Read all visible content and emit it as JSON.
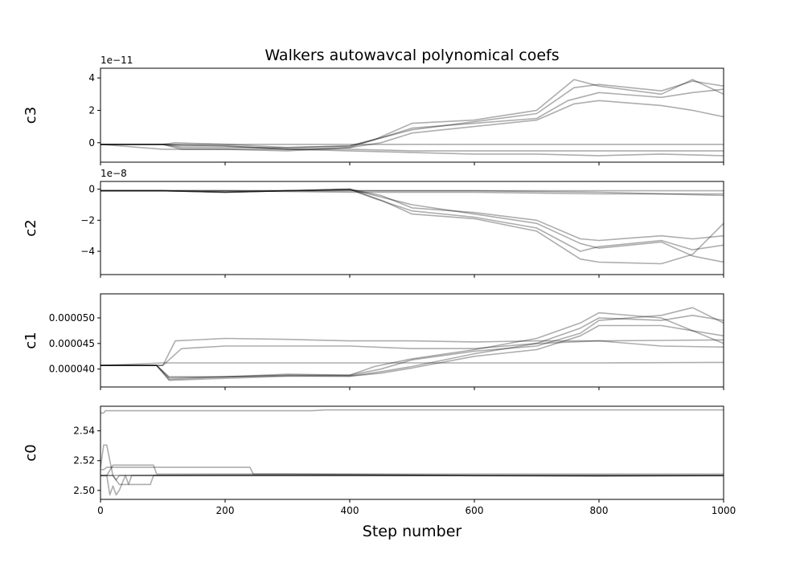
{
  "chart_data": {
    "type": "line",
    "title": "Walkers autowavcal polynomical coefs",
    "xlabel": "Step number",
    "xlim": [
      0,
      1000
    ],
    "xticks": [
      0,
      200,
      400,
      600,
      800,
      1000
    ],
    "xtick_labels": [
      "0",
      "200",
      "400",
      "600",
      "800",
      "1000"
    ],
    "series_color": "#000000",
    "grid": false,
    "panels": [
      {
        "ylabel": "c3",
        "offset_text": "1e−11",
        "ylim": [
          -1.2,
          4.6
        ],
        "yticks": [
          0,
          2,
          4
        ],
        "ytick_labels": [
          "0",
          "2",
          "4"
        ],
        "walkers": [
          {
            "x": [
              0,
              100,
              120,
              200,
              300,
              400,
              430,
              500,
              600,
              700,
              760,
              800,
              900,
              950,
              1000
            ],
            "y": [
              -0.1,
              -0.1,
              0.0,
              -0.1,
              -0.3,
              -0.2,
              0.1,
              0.8,
              1.3,
              1.8,
              3.4,
              3.6,
              3.2,
              3.8,
              3.5
            ]
          },
          {
            "x": [
              0,
              100,
              130,
              200,
              300,
              400,
              440,
              500,
              600,
              700,
              760,
              800,
              900,
              950,
              1000
            ],
            "y": [
              -0.1,
              -0.1,
              -0.2,
              -0.2,
              -0.4,
              -0.3,
              0.2,
              1.2,
              1.4,
              2.0,
              3.9,
              3.5,
              3.0,
              3.9,
              3.0
            ]
          },
          {
            "x": [
              0,
              100,
              130,
              200,
              300,
              400,
              450,
              500,
              600,
              700,
              750,
              800,
              900,
              950,
              1000
            ],
            "y": [
              -0.1,
              -0.1,
              -0.3,
              -0.3,
              -0.3,
              -0.2,
              0.3,
              0.9,
              1.2,
              1.5,
              2.6,
              3.1,
              2.8,
              3.1,
              3.3
            ]
          },
          {
            "x": [
              0,
              100,
              130,
              200,
              300,
              400,
              450,
              500,
              600,
              700,
              760,
              800,
              900,
              950,
              1000
            ],
            "y": [
              -0.1,
              -0.1,
              -0.4,
              -0.4,
              -0.5,
              -0.3,
              0.0,
              0.6,
              1.0,
              1.4,
              2.4,
              2.6,
              2.3,
              2.0,
              1.6
            ]
          },
          {
            "x": [
              0,
              100,
              200,
              300,
              400,
              500,
              600,
              700,
              800,
              900,
              1000
            ],
            "y": [
              -0.1,
              -0.1,
              -0.1,
              -0.1,
              -0.1,
              -0.1,
              -0.1,
              -0.1,
              -0.1,
              -0.1,
              -0.1
            ]
          },
          {
            "x": [
              0,
              100,
              200,
              300,
              400,
              500,
              600,
              700,
              800,
              900,
              1000
            ],
            "y": [
              -0.1,
              -0.4,
              -0.4,
              -0.4,
              -0.4,
              -0.5,
              -0.5,
              -0.5,
              -0.5,
              -0.5,
              -0.5
            ]
          },
          {
            "x": [
              0,
              100,
              200,
              300,
              400,
              500,
              600,
              700,
              800,
              900,
              1000
            ],
            "y": [
              -0.1,
              -0.1,
              -0.2,
              -0.4,
              -0.5,
              -0.6,
              -0.7,
              -0.7,
              -0.8,
              -0.7,
              -0.8
            ]
          }
        ]
      },
      {
        "ylabel": "c2",
        "offset_text": "1e−8",
        "ylim": [
          -5.5,
          0.5
        ],
        "yticks": [
          -4,
          -2,
          0
        ],
        "ytick_labels": [
          "−4",
          "−2",
          "0"
        ],
        "walkers": [
          {
            "x": [
              0,
              100,
              200,
              300,
              400,
              430,
              500,
              600,
              700,
              770,
              800,
              900,
              950,
              1000
            ],
            "y": [
              -0.1,
              -0.1,
              -0.2,
              -0.1,
              0.0,
              -0.3,
              -1.0,
              -1.6,
              -2.2,
              -3.5,
              -3.8,
              -3.4,
              -4.3,
              -4.7
            ]
          },
          {
            "x": [
              0,
              100,
              200,
              300,
              400,
              440,
              500,
              600,
              700,
              770,
              800,
              900,
              950,
              1000
            ],
            "y": [
              -0.1,
              -0.1,
              -0.2,
              -0.1,
              0.0,
              -0.6,
              -1.4,
              -1.8,
              -2.5,
              -4.0,
              -3.7,
              -3.3,
              -3.9,
              -3.6
            ]
          },
          {
            "x": [
              0,
              100,
              200,
              300,
              400,
              450,
              500,
              600,
              700,
              770,
              800,
              900,
              950,
              1000
            ],
            "y": [
              -0.1,
              -0.1,
              -0.2,
              -0.1,
              0.0,
              -0.4,
              -1.2,
              -1.5,
              -2.0,
              -3.2,
              -3.3,
              -3.0,
              -3.2,
              -3.0
            ]
          },
          {
            "x": [
              0,
              100,
              200,
              300,
              400,
              450,
              500,
              600,
              700,
              770,
              800,
              900,
              950,
              1000
            ],
            "y": [
              -0.1,
              -0.1,
              -0.2,
              -0.1,
              0.0,
              -0.7,
              -1.6,
              -1.9,
              -2.7,
              -4.5,
              -4.7,
              -4.8,
              -4.2,
              -2.2
            ]
          },
          {
            "x": [
              0,
              200,
              400,
              600,
              800,
              1000
            ],
            "y": [
              -0.1,
              -0.1,
              -0.1,
              -0.1,
              -0.1,
              -0.1
            ]
          },
          {
            "x": [
              0,
              200,
              400,
              600,
              800,
              1000
            ],
            "y": [
              -0.1,
              -0.1,
              -0.2,
              -0.2,
              -0.3,
              -0.3
            ]
          },
          {
            "x": [
              0,
              200,
              400,
              600,
              800,
              1000
            ],
            "y": [
              -0.1,
              -0.1,
              -0.1,
              -0.1,
              -0.2,
              -0.4
            ]
          }
        ]
      },
      {
        "ylabel": "c1",
        "offset_text": "",
        "ylim": [
          3.65e-05,
          5.47e-05
        ],
        "yticks": [
          4e-05,
          4.5e-05,
          5e-05
        ],
        "ytick_labels": [
          "0.000040",
          "0.000045",
          "0.000050"
        ],
        "walkers": [
          {
            "x": [
              0,
              90,
              110,
              200,
              300,
              400,
              440,
              500,
              600,
              700,
              770,
              800,
              900,
              950,
              1000
            ],
            "y": [
              4.07e-05,
              4.07e-05,
              3.85e-05,
              3.85e-05,
              3.88e-05,
              3.88e-05,
              4.05e-05,
              4.2e-05,
              4.38e-05,
              4.6e-05,
              4.9e-05,
              5.1e-05,
              5e-05,
              4.75e-05,
              4.5e-05
            ]
          },
          {
            "x": [
              0,
              90,
              110,
              200,
              300,
              400,
              450,
              500,
              600,
              700,
              770,
              800,
              900,
              950,
              1000
            ],
            "y": [
              4.07e-05,
              4.07e-05,
              3.8e-05,
              3.85e-05,
              3.9e-05,
              3.88e-05,
              4e-05,
              4.18e-05,
              4.35e-05,
              4.45e-05,
              4.7e-05,
              4.95e-05,
              5.05e-05,
              5.2e-05,
              4.9e-05
            ]
          },
          {
            "x": [
              0,
              90,
              110,
              200,
              300,
              400,
              450,
              500,
              600,
              700,
              770,
              800,
              900,
              950,
              1000
            ],
            "y": [
              4.07e-05,
              4.07e-05,
              3.83e-05,
              3.85e-05,
              3.87e-05,
              3.86e-05,
              3.95e-05,
              4.05e-05,
              4.3e-05,
              4.5e-05,
              4.8e-05,
              5e-05,
              4.95e-05,
              5.05e-05,
              4.95e-05
            ]
          },
          {
            "x": [
              0,
              90,
              110,
              200,
              300,
              400,
              450,
              500,
              600,
              700,
              770,
              800,
              900,
              950,
              1000
            ],
            "y": [
              4.07e-05,
              4.07e-05,
              3.78e-05,
              3.82e-05,
              3.86e-05,
              3.86e-05,
              3.92e-05,
              4.02e-05,
              4.25e-05,
              4.38e-05,
              4.65e-05,
              4.85e-05,
              4.85e-05,
              4.75e-05,
              4.65e-05
            ]
          },
          {
            "x": [
              0,
              100,
              120,
              200,
              300,
              400,
              500,
              600,
              700,
              800,
              900,
              1000
            ],
            "y": [
              4.07e-05,
              4.07e-05,
              4.55e-05,
              4.6e-05,
              4.58e-05,
              4.55e-05,
              4.55e-05,
              4.53e-05,
              4.55e-05,
              4.55e-05,
              4.56e-05,
              4.57e-05
            ]
          },
          {
            "x": [
              0,
              100,
              130,
              200,
              300,
              400,
              500,
              600,
              700,
              800,
              900,
              1000
            ],
            "y": [
              4.07e-05,
              4.07e-05,
              4.4e-05,
              4.45e-05,
              4.45e-05,
              4.45e-05,
              4.4e-05,
              4.4e-05,
              4.5e-05,
              4.55e-05,
              4.45e-05,
              4.43e-05
            ]
          },
          {
            "x": [
              0,
              100,
              200,
              400,
              600,
              800,
              1000
            ],
            "y": [
              4.07e-05,
              4.12e-05,
              4.12e-05,
              4.12e-05,
              4.12e-05,
              4.12e-05,
              4.13e-05
            ]
          }
        ]
      },
      {
        "ylabel": "c0",
        "offset_text": "",
        "ylim": [
          2.494,
          2.5565
        ],
        "yticks": [
          2.5,
          2.52,
          2.54
        ],
        "ytick_labels": [
          "2.50",
          "2.52",
          "2.54"
        ],
        "walkers": [
          {
            "x": [
              0,
              5,
              8,
              200,
              340,
              360,
              1000
            ],
            "y": [
              2.552,
              2.552,
              2.5535,
              2.5535,
              2.5535,
              2.554,
              2.554
            ]
          },
          {
            "x": [
              0,
              5,
              10,
              240,
              245,
              1000
            ],
            "y": [
              2.514,
              2.514,
              2.5155,
              2.5155,
              2.511,
              2.511
            ]
          },
          {
            "x": [
              0,
              10,
              20,
              85,
              90,
              300,
              600,
              1000
            ],
            "y": [
              2.51,
              2.51,
              2.517,
              2.517,
              2.511,
              2.511,
              2.51,
              2.51
            ]
          },
          {
            "x": [
              0,
              5,
              10,
              15,
              20,
              25,
              30,
              1000
            ],
            "y": [
              2.515,
              2.5305,
              2.5305,
              2.52,
              2.51,
              2.507,
              2.51,
              2.51
            ]
          },
          {
            "x": [
              0,
              10,
              15,
              20,
              25,
              30,
              35,
              40,
              45,
              50,
              1000
            ],
            "y": [
              2.51,
              2.51,
              2.497,
              2.503,
              2.497,
              2.5,
              2.505,
              2.51,
              2.504,
              2.51,
              2.51
            ]
          },
          {
            "x": [
              0,
              20,
              30,
              80,
              85,
              1000
            ],
            "y": [
              2.51,
              2.51,
              2.504,
              2.504,
              2.51,
              2.51
            ]
          },
          {
            "x": [
              0,
              10,
              200,
              400,
              600,
              800,
              1000
            ],
            "y": [
              2.51,
              2.51,
              2.5105,
              2.5105,
              2.51,
              2.5095,
              2.51
            ]
          }
        ]
      }
    ]
  }
}
